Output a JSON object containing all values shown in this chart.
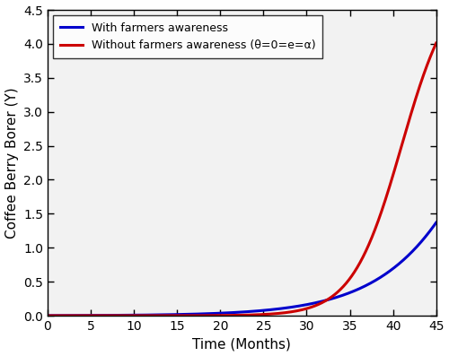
{
  "xlabel": "Time (Months)",
  "ylabel": "Coffee Berry Borer (Y)",
  "xlim": [
    0,
    45
  ],
  "ylim": [
    0,
    4.5
  ],
  "xticks": [
    0,
    5,
    10,
    15,
    20,
    25,
    30,
    35,
    40,
    45
  ],
  "yticks": [
    0.0,
    0.5,
    1.0,
    1.5,
    2.0,
    2.5,
    3.0,
    3.5,
    4.0,
    4.5
  ],
  "legend_with": "With farmers awareness",
  "legend_without": "Without farmers awareness (θ=0=e=α)",
  "blue_color": "#0000cc",
  "red_color": "#cc0000",
  "line_width": 2.2,
  "blue_A": 1.8e-07,
  "blue_r": 0.38,
  "red_A": 1.8e-07,
  "red_r": 0.58,
  "figsize": [
    5.0,
    3.97
  ],
  "dpi": 100,
  "bg_color": "#f2f2f2"
}
